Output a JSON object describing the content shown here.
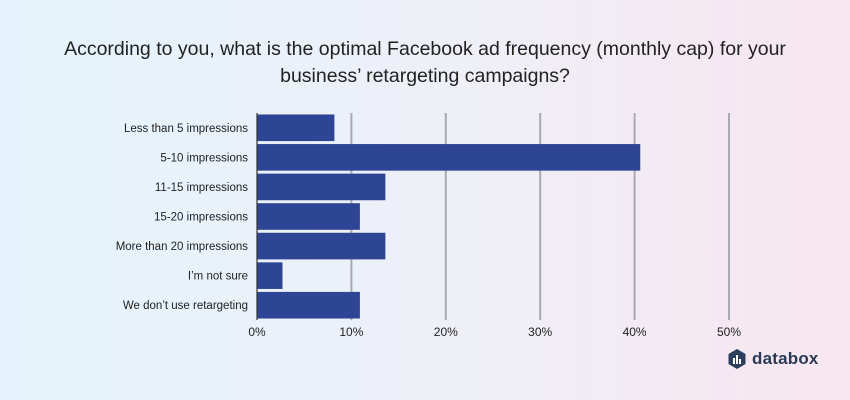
{
  "title_line1": "According to you, what is the optimal Facebook ad frequency (monthly cap) for your",
  "title_line2": "business’ retargeting campaigns?",
  "brand": {
    "name": "databox",
    "icon": "databox-logo-icon",
    "color": "#2c3e5c"
  },
  "chart_data": {
    "type": "bar",
    "orientation": "horizontal",
    "categories": [
      "Less than 5 impressions",
      "5-10 impressions",
      "11-15 impressions",
      "15-20 impressions",
      "More than 20 impressions",
      "I’m not sure",
      "We don’t use retargeting"
    ],
    "values": [
      8.2,
      40.6,
      13.6,
      10.9,
      13.6,
      2.7,
      10.9
    ],
    "unit": "%",
    "xlim": [
      0,
      50
    ],
    "xticks": [
      0,
      10,
      20,
      30,
      40,
      50
    ],
    "xtick_labels": [
      "0%",
      "10%",
      "20%",
      "30%",
      "40%",
      "50%"
    ],
    "grid": true,
    "bar_color": "#2e4494",
    "grid_color": "#a9a9b2"
  }
}
